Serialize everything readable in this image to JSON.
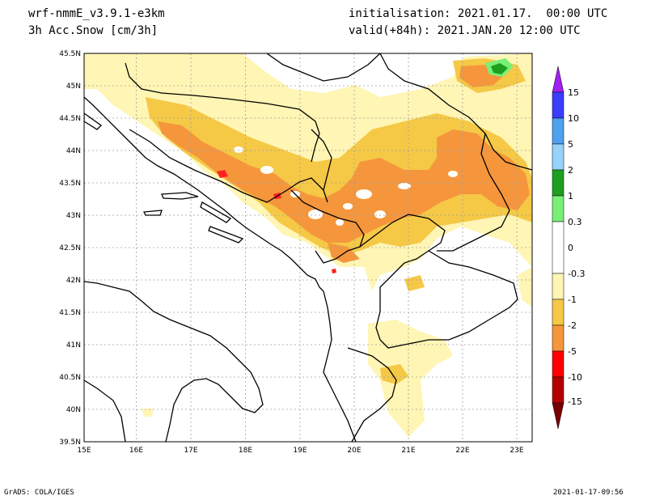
{
  "header": {
    "model": "wrf-nmmE_v3.9.1-e3km",
    "field": "3h Acc.Snow [cm/3h]",
    "init": "initialisation: 2021.01.17.  00:00 UTC",
    "valid": "valid(+84h): 2021.JAN.20 12:00 UTC"
  },
  "footer": {
    "left": "GrADS: COLA/IGES",
    "right": "2021-01-17-09:56"
  },
  "map": {
    "lon_labels": [
      "15E",
      "16E",
      "17E",
      "18E",
      "19E",
      "20E",
      "21E",
      "22E",
      "23E"
    ],
    "lat_labels": [
      "39.5N",
      "40N",
      "40.5N",
      "41N",
      "41.5N",
      "42N",
      "42.5N",
      "43N",
      "43.5N",
      "44N",
      "44.5N",
      "45N",
      "45.5N"
    ],
    "lon_range": [
      15,
      23.3
    ],
    "lat_range": [
      39.5,
      45.5
    ],
    "grid": true
  },
  "colorbar": {
    "levels": [
      "15",
      "10",
      "5",
      "2",
      "1",
      "0.3",
      "0",
      "-0.3",
      "-1",
      "-2",
      "-5",
      "-10",
      "-15"
    ],
    "colors": [
      "#a020f0",
      "#3c3cff",
      "#50a0f0",
      "#96d2fa",
      "#1ea01e",
      "#78f078",
      "#ffffff",
      "#fffac8",
      "#fff0a0",
      "#f5c846",
      "#f5963c",
      "#ff0000",
      "#b40000",
      "#780000"
    ]
  },
  "snow_colors": {
    "light": "#fff5b4",
    "yellow": "#f5c846",
    "orange": "#f5963c",
    "red": "#ff2020",
    "green": "#1ea01e",
    "lightgreen": "#78f078"
  }
}
